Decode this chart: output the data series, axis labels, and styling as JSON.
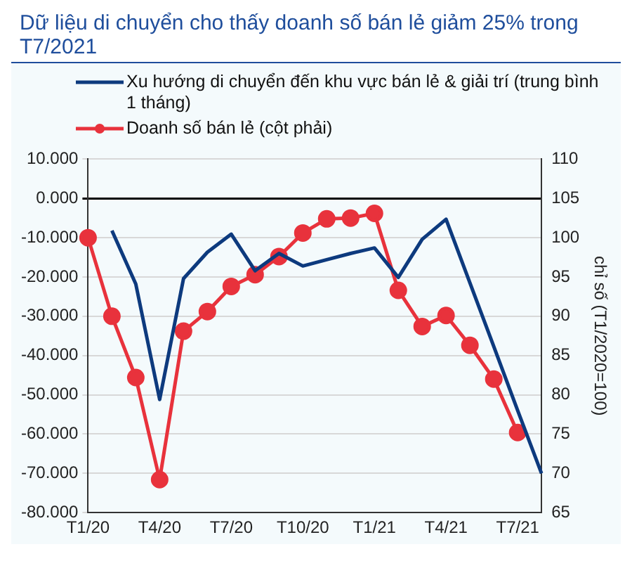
{
  "chart_data": {
    "type": "line",
    "title": "Dữ liệu di chuyển cho thấy doanh số bán lẻ giảm 25% trong T7/2021",
    "categories": [
      "T1/20",
      null,
      null,
      "T4/20",
      null,
      null,
      "T7/20",
      null,
      null,
      "T10/20",
      null,
      null,
      "T1/21",
      null,
      null,
      "T4/21",
      null,
      null,
      "T7/21",
      null
    ],
    "series": [
      {
        "name": "Xu hướng di chuyển đến khu vực bán lẻ & giải trí (trung bình 1 tháng)",
        "color": "#0d3a7e",
        "marker": "none",
        "values": [
          null,
          -8.2,
          -21.8,
          -51.2,
          -20.4,
          -13.7,
          -9.1,
          -18.4,
          -14.0,
          -17.2,
          -15.6,
          -14.0,
          -12.6,
          -20.1,
          -10.4,
          -5.3,
          -21.5,
          -37.7,
          -54.0,
          -70.0
        ]
      },
      {
        "name": "Doanh số bán lẻ (cột phải)",
        "color": "#e8323c",
        "marker": "circle",
        "axis": "y2",
        "values": [
          100.0,
          90.0,
          82.2,
          69.2,
          88.1,
          90.6,
          93.8,
          95.3,
          97.6,
          100.6,
          102.4,
          102.5,
          103.1,
          93.3,
          88.7,
          90.1,
          86.3,
          82.0,
          75.2,
          null
        ]
      }
    ],
    "ylim": [
      -80,
      10
    ],
    "yticks": [
      {
        "value": 10,
        "label": "10.000"
      },
      {
        "value": 0,
        "label": "0.000"
      },
      {
        "value": -10,
        "label": "-10.000"
      },
      {
        "value": -20,
        "label": "-20.000"
      },
      {
        "value": -30,
        "label": "-30.000"
      },
      {
        "value": -40,
        "label": "-40.000"
      },
      {
        "value": -50,
        "label": "-50.000"
      },
      {
        "value": -60,
        "label": "-60.000"
      },
      {
        "value": -70,
        "label": "-70.000"
      },
      {
        "value": -80,
        "label": "-80.000"
      }
    ],
    "y2lim": [
      65,
      110
    ],
    "y2ticks": [
      65,
      70,
      75,
      80,
      85,
      90,
      95,
      100,
      105,
      110
    ],
    "y2label": "chỉ số (T1/2020=100)",
    "grid": "y",
    "legend": "top"
  }
}
